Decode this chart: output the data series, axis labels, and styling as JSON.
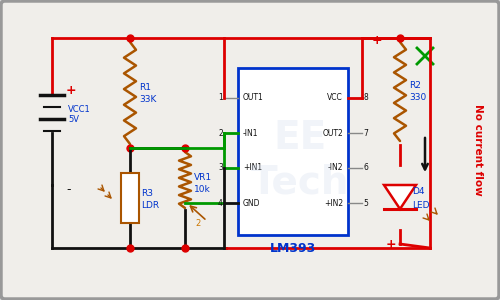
{
  "bg_outer": "#d8d8d8",
  "bg_inner": "#f0eeea",
  "border_color": "#aaaaaa",
  "red": "#dd0000",
  "black": "#111111",
  "blue": "#0033cc",
  "green": "#009900",
  "brown": "#aa5500",
  "orange": "#cc7700",
  "node_color": "#dd0000",
  "gray": "#888888",
  "vcc1_label": "VCC1",
  "vcc1_v": "5V",
  "r1_label": "R1",
  "r1_val": "33K",
  "r3_label": "R3",
  "r3_val": "LDR",
  "vr1_label": "VR1",
  "vr1_val": "10k",
  "r2_label": "R2",
  "r2_val": "330",
  "d4_label": "D4",
  "d4_val": "LED",
  "lm393_label": "LM393",
  "title": "No current flow",
  "title_color": "#dd0000",
  "pin_left": [
    "OUT1",
    "-IN1",
    "+IN1",
    "GND"
  ],
  "pin_right": [
    "VCC",
    "OUT2",
    "-IN2",
    "+IN2"
  ],
  "pin_num_left": [
    "1",
    "2",
    "3",
    "4"
  ],
  "pin_num_right": [
    "8",
    "7",
    "6",
    "5"
  ]
}
